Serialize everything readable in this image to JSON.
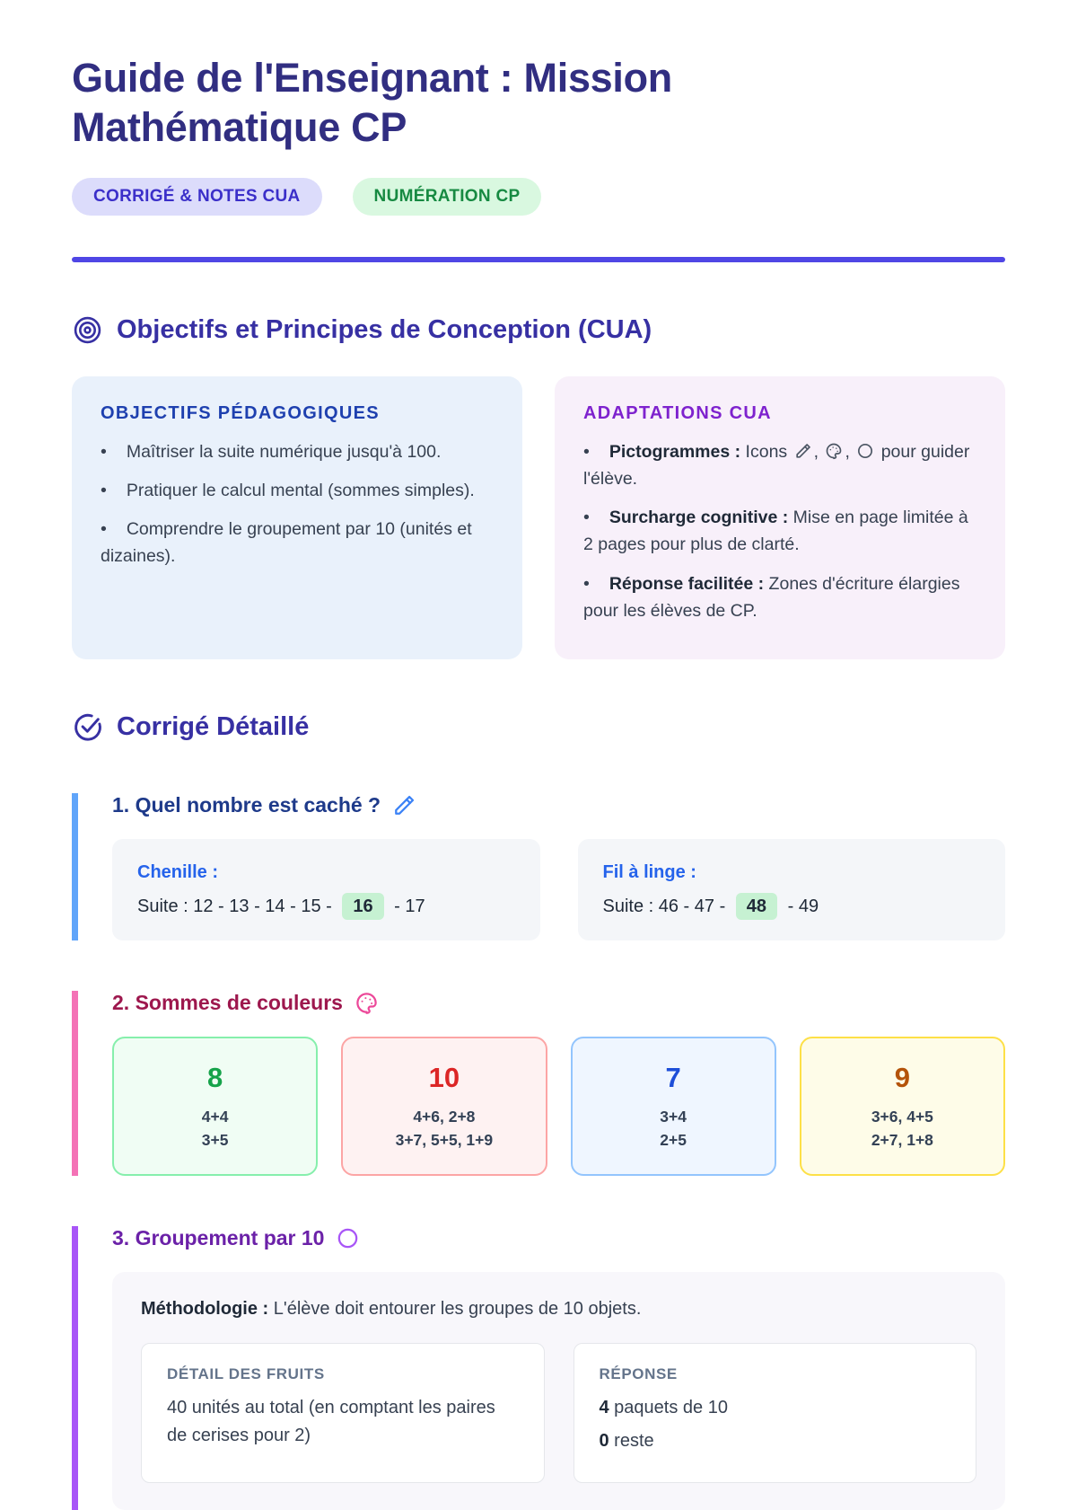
{
  "ui": {
    "bullet": "•"
  },
  "header": {
    "title": "Guide de l'Enseignant : Mission Mathématique CP",
    "title_color": "#312e81",
    "badges": [
      {
        "label": "CORRIGÉ & NOTES CUA",
        "bg": "#dcdcfb",
        "color": "#3b2fc9"
      },
      {
        "label": "NUMÉRATION CP",
        "bg": "#d9f8e0",
        "color": "#178a42"
      }
    ],
    "divider_color": "#4f46e5"
  },
  "objectives": {
    "heading": "Objectifs et Principes de Conception (CUA)",
    "icon": "target-icon",
    "cards": [
      {
        "title": "OBJECTIFS PÉDAGOGIQUES",
        "accent": "#1e40af",
        "bg": "#e9f1fb",
        "bullets": [
          [
            {
              "t": "t",
              "v": "Maîtriser la suite numérique jusqu'à 100."
            }
          ],
          [
            {
              "t": "t",
              "v": "Pratiquer le calcul mental (sommes simples)."
            }
          ],
          [
            {
              "t": "t",
              "v": "Comprendre le groupement par 10 (unités et dizaines)."
            }
          ]
        ]
      },
      {
        "title": "ADAPTATIONS CUA",
        "accent": "#7e22ce",
        "bg": "#f8f0fa",
        "bullets": [
          [
            {
              "t": "b",
              "v": "Pictogrammes :"
            },
            {
              "t": "t",
              "v": " Icons "
            },
            {
              "t": "i",
              "v": "pencil-icon"
            },
            {
              "t": "t",
              "v": ", "
            },
            {
              "t": "i",
              "v": "palette-icon"
            },
            {
              "t": "t",
              "v": ", "
            },
            {
              "t": "i",
              "v": "circle-icon"
            },
            {
              "t": "t",
              "v": " pour guider l'élève."
            }
          ],
          [
            {
              "t": "b",
              "v": "Surcharge cognitive :"
            },
            {
              "t": "t",
              "v": " Mise en page limitée à 2 pages pour plus de clarté."
            }
          ],
          [
            {
              "t": "b",
              "v": "Réponse facilitée :"
            },
            {
              "t": "t",
              "v": " Zones d'écriture élargies pour les élèves de CP."
            }
          ]
        ]
      }
    ]
  },
  "corrige": {
    "heading": "Corrigé Détaillé",
    "icon": "check-circle-icon",
    "q1": {
      "title": "1. Quel nombre est caché ?",
      "icon": "pencil-icon",
      "accent": "#60a5fa",
      "highlight_bg": "#c6f1d2",
      "cards": [
        {
          "label": "Chenille :",
          "prefix": "Suite : 12 - 13 - 14 - 15 - ",
          "answer": "16",
          "suffix": " - 17"
        },
        {
          "label": "Fil à linge :",
          "prefix": "Suite : 46 - 47 - ",
          "answer": "48",
          "suffix": " - 49"
        }
      ]
    },
    "q2": {
      "title": "2. Sommes de couleurs",
      "icon": "palette-icon",
      "accent": "#f472b6",
      "cards": [
        {
          "theme": "green",
          "value": "8",
          "value_color": "#16a34a",
          "lines": [
            "4+4",
            "3+5"
          ]
        },
        {
          "theme": "red",
          "value": "10",
          "value_color": "#dc2626",
          "lines": [
            "4+6, 2+8",
            "3+7, 5+5, 1+9"
          ]
        },
        {
          "theme": "blue",
          "value": "7",
          "value_color": "#1d4ed8",
          "lines": [
            "3+4",
            "2+5"
          ]
        },
        {
          "theme": "yellow",
          "value": "9",
          "value_color": "#b45309",
          "lines": [
            "3+6, 4+5",
            "2+7, 1+8"
          ]
        }
      ]
    },
    "q3": {
      "title": "3. Groupement par 10",
      "icon": "circle-icon",
      "accent": "#a855f7",
      "methodology_label": "Méthodologie :",
      "methodology_text": " L'élève doit entourer les groupes de 10 objets.",
      "panels": [
        {
          "title": "DÉTAIL DES FRUITS",
          "lines": [
            {
              "bold": "",
              "text": "40 unités au total (en comptant les paires de cerises pour 2)"
            }
          ]
        },
        {
          "title": "RÉPONSE",
          "lines": [
            {
              "bold": "4",
              "text": " paquets de 10"
            },
            {
              "bold": "0",
              "text": " reste"
            }
          ]
        }
      ]
    }
  }
}
